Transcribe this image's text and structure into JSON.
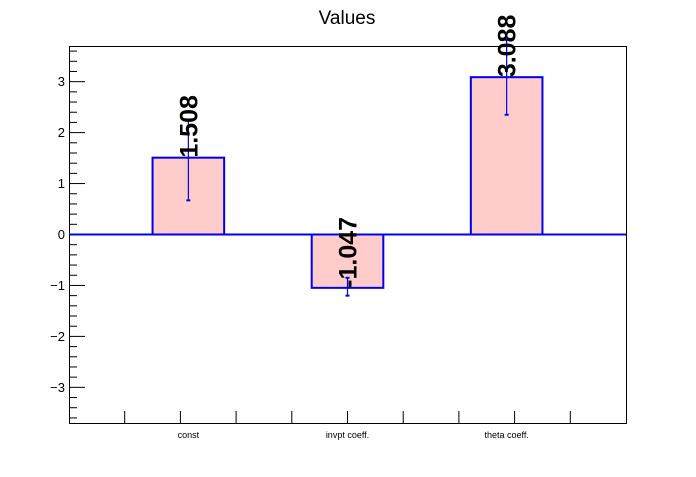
{
  "chart_data": {
    "type": "bar",
    "title": "Values",
    "categories": [
      "const",
      "invpt coeff.",
      "theta coeff."
    ],
    "values": [
      1.508,
      -1.047,
      3.088
    ],
    "error_low": [
      0.67,
      -1.2,
      2.35
    ],
    "error_high": [
      2.25,
      -0.85,
      3.82
    ],
    "data_labels": [
      "1.508",
      "-1.047",
      "3.088"
    ],
    "ylim": [
      -3.7,
      3.7
    ],
    "y_ticks": [
      -3,
      -2,
      -1,
      0,
      1,
      2,
      3
    ],
    "y_tick_labels": [
      "−3",
      "−2",
      "−1",
      "0",
      "1",
      "2",
      "3"
    ],
    "xlabel": "",
    "ylabel": "",
    "grid": false,
    "legend": "none",
    "colors": {
      "bar_fill": "#ffcccc",
      "bar_edge": "#0000ee",
      "error_bar": "#0000ee",
      "axis": "#000000"
    }
  }
}
